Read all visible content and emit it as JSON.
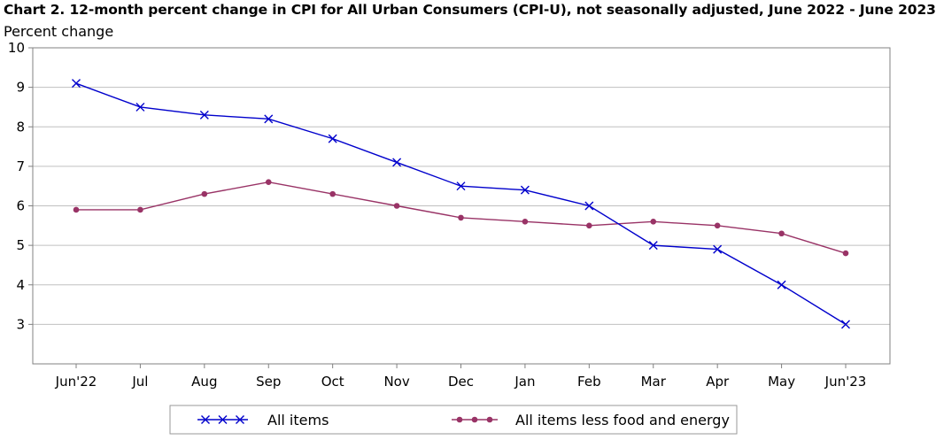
{
  "chart_data": {
    "type": "line",
    "title": "Chart 2. 12-month percent change in CPI for All Urban Consumers (CPI-U), not seasonally adjusted, June 2022 - June 2023",
    "ylabel": "Percent change",
    "xlabel": "",
    "categories": [
      "Jun'22",
      "Jul",
      "Aug",
      "Sep",
      "Oct",
      "Nov",
      "Dec",
      "Jan",
      "Feb",
      "Mar",
      "Apr",
      "May",
      "Jun'23"
    ],
    "ylim": [
      2,
      10
    ],
    "yticks": [
      3,
      4,
      5,
      6,
      7,
      8,
      9,
      10
    ],
    "grid": true,
    "legend_position": "bottom",
    "series": [
      {
        "name": "All items",
        "color": "#0000cc",
        "marker": "x",
        "values": [
          9.1,
          8.5,
          8.3,
          8.2,
          7.7,
          7.1,
          6.5,
          6.4,
          6.0,
          5.0,
          4.9,
          4.0,
          3.0
        ]
      },
      {
        "name": "All items less food and energy",
        "color": "#993366",
        "marker": "circle",
        "values": [
          5.9,
          5.9,
          6.3,
          6.6,
          6.3,
          6.0,
          5.7,
          5.6,
          5.5,
          5.6,
          5.5,
          5.3,
          4.8
        ]
      }
    ]
  }
}
